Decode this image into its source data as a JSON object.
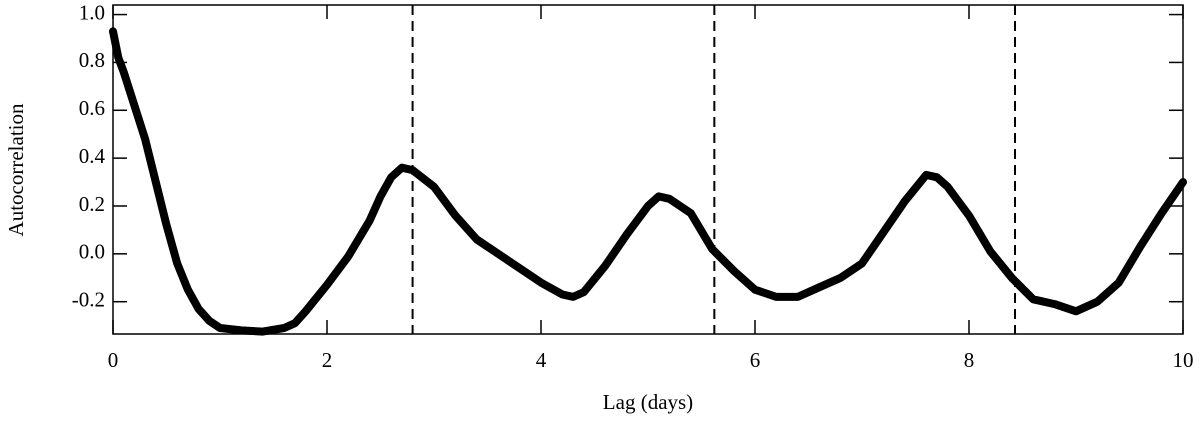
{
  "chart_data": {
    "type": "line",
    "xlabel": "Lag (days)",
    "ylabel": "Autocorrelation",
    "x": [
      0,
      0.05,
      0.1,
      0.2,
      0.3,
      0.4,
      0.5,
      0.6,
      0.7,
      0.8,
      0.9,
      1.0,
      1.2,
      1.4,
      1.6,
      1.7,
      1.8,
      2.0,
      2.2,
      2.4,
      2.5,
      2.6,
      2.7,
      2.8,
      3.0,
      3.2,
      3.4,
      3.6,
      3.8,
      4.0,
      4.2,
      4.3,
      4.4,
      4.6,
      4.8,
      5.0,
      5.1,
      5.2,
      5.4,
      5.6,
      5.8,
      6.0,
      6.2,
      6.4,
      6.6,
      6.8,
      7.0,
      7.2,
      7.4,
      7.6,
      7.7,
      7.8,
      8.0,
      8.2,
      8.4,
      8.6,
      8.8,
      9.0,
      9.2,
      9.4,
      9.6,
      9.8,
      10.0
    ],
    "series": [
      {
        "color": "#000000",
        "values": [
          0.93,
          0.82,
          0.76,
          0.62,
          0.48,
          0.3,
          0.12,
          -0.04,
          -0.15,
          -0.23,
          -0.28,
          -0.31,
          -0.32,
          -0.325,
          -0.31,
          -0.29,
          -0.24,
          -0.13,
          -0.01,
          0.14,
          0.24,
          0.32,
          0.36,
          0.35,
          0.28,
          0.16,
          0.06,
          0.0,
          -0.06,
          -0.12,
          -0.17,
          -0.18,
          -0.16,
          -0.05,
          0.08,
          0.2,
          0.24,
          0.23,
          0.17,
          0.02,
          -0.07,
          -0.15,
          -0.18,
          -0.18,
          -0.14,
          -0.1,
          -0.04,
          0.09,
          0.22,
          0.33,
          0.32,
          0.28,
          0.16,
          0.01,
          -0.1,
          -0.19,
          -0.21,
          -0.24,
          -0.2,
          -0.12,
          0.03,
          0.17,
          0.3
        ]
      }
    ],
    "vlines": [
      2.8,
      5.62,
      8.43
    ],
    "xlim": [
      0,
      10
    ],
    "ylim": [
      -0.335,
      1.04
    ],
    "xticks": [
      0,
      2,
      4,
      6,
      8,
      10
    ],
    "yticks": [
      {
        "value": -0.2,
        "label": "-0.2"
      },
      {
        "value": 0,
        "label": "0.0"
      },
      {
        "value": 0.2,
        "label": "0.2"
      },
      {
        "value": 0.4,
        "label": "0.4"
      },
      {
        "value": 0.6,
        "label": "0.6"
      },
      {
        "value": 0.8,
        "label": "0.8"
      },
      {
        "value": 1.0,
        "label": "1.0"
      }
    ]
  }
}
